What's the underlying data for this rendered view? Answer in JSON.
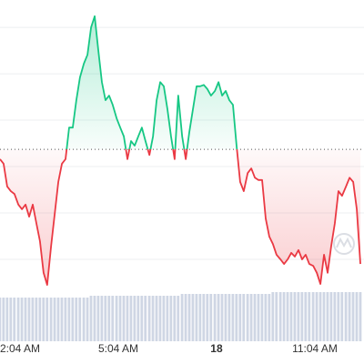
{
  "chart_data": {
    "type": "line",
    "x": [
      1.46,
      1.57,
      1.68,
      1.79,
      1.9,
      2.02,
      2.13,
      2.24,
      2.35,
      2.46,
      2.57,
      2.68,
      2.79,
      2.9,
      3.02,
      3.13,
      3.24,
      3.35,
      3.46,
      3.57,
      3.68,
      3.79,
      3.9,
      4.02,
      4.13,
      4.24,
      4.35,
      4.46,
      4.57,
      4.68,
      4.79,
      4.9,
      5.02,
      5.13,
      5.24,
      5.35,
      5.46,
      5.57,
      5.68,
      5.79,
      5.9,
      6.02,
      6.13,
      6.24,
      6.35,
      6.46,
      6.57,
      6.68,
      6.79,
      6.9,
      7.02,
      7.13,
      7.24,
      7.35,
      7.46,
      7.57,
      7.68,
      7.79,
      7.9,
      8.02,
      8.13,
      8.24,
      8.35,
      8.46,
      8.57,
      8.68,
      8.79,
      8.9,
      9.02,
      9.13,
      9.24,
      9.35,
      9.46,
      9.57,
      9.68,
      9.79,
      9.9,
      10.02,
      10.13,
      10.24,
      10.35,
      10.46,
      10.57,
      10.68,
      10.79,
      10.9,
      11.02,
      11.13,
      11.24,
      11.35,
      11.46,
      11.57,
      11.68,
      11.79,
      11.9,
      12.02,
      12.13,
      12.24,
      12.35,
      12.46
    ],
    "values": [
      31.6,
      30.6,
      25.7,
      24.7,
      24.1,
      21.8,
      20.8,
      21.8,
      19.2,
      21.8,
      17.8,
      13.9,
      7.1,
      4.5,
      12.9,
      19.8,
      26.7,
      30.6,
      31.6,
      38.4,
      38.4,
      44.3,
      49.2,
      52.2,
      54.1,
      60.0,
      62.4,
      55.1,
      48.2,
      44.3,
      45.3,
      43.3,
      40.4,
      38.4,
      36.5,
      31.6,
      35.5,
      34.5,
      36.5,
      38.4,
      35.5,
      32.5,
      36.5,
      44.3,
      48.2,
      47.3,
      42.4,
      36.5,
      31.6,
      45.3,
      36.5,
      31.6,
      37.5,
      42.4,
      47.3,
      47.3,
      47.6,
      46.7,
      45.3,
      46.3,
      48.2,
      45.3,
      46.3,
      44.3,
      43.3,
      34.5,
      26.7,
      24.7,
      28.6,
      29.6,
      27.6,
      27.1,
      27.1,
      18.8,
      14.9,
      13.3,
      11.0,
      10.0,
      9.0,
      10.0,
      11.4,
      10.6,
      12.0,
      10.0,
      11.0,
      9.0,
      8.6,
      7.1,
      4.7,
      11.0,
      7.1,
      12.9,
      17.8,
      24.7,
      23.7,
      25.7,
      27.6,
      26.7,
      20.8,
      9.0
    ],
    "volume": [
      48,
      48,
      48,
      48,
      48,
      48,
      48,
      48,
      48,
      48,
      48,
      48,
      48,
      48,
      48,
      48,
      48,
      48,
      48,
      48,
      48,
      48,
      48,
      48,
      48,
      50,
      50,
      50,
      50,
      50,
      50,
      50,
      50,
      50,
      50,
      50,
      50,
      50,
      50,
      50,
      50,
      50,
      50,
      50,
      50,
      50,
      50,
      50,
      50,
      50,
      52,
      52,
      52,
      52,
      52,
      52,
      52,
      52,
      52,
      52,
      52,
      52,
      52,
      52,
      52,
      52,
      52,
      52,
      52,
      52,
      52,
      52,
      52,
      52,
      52,
      54,
      54,
      54,
      54,
      54,
      54,
      54,
      54,
      54,
      54,
      54,
      54,
      54,
      54,
      54,
      54,
      54,
      54,
      54,
      54,
      54,
      54,
      54,
      54,
      54
    ],
    "volume_ylim": [
      0,
      60
    ],
    "baseline": 33.7,
    "up_color": "#16c784",
    "down_color": "#ea3943",
    "volume_color": "#cfd6e4",
    "xlim": [
      1.46,
      12.57
    ],
    "xticks": [
      {
        "value": 2.07,
        "label": "2:04 AM"
      },
      {
        "value": 5.07,
        "label": "5:04 AM"
      },
      {
        "value": 8.07,
        "label": "18"
      },
      {
        "value": 11.07,
        "label": "11:04 AM"
      }
    ],
    "ylim": [
      0,
      65.9
    ],
    "yticks": [
      10,
      20,
      30,
      40,
      50,
      60
    ],
    "grid": true
  }
}
